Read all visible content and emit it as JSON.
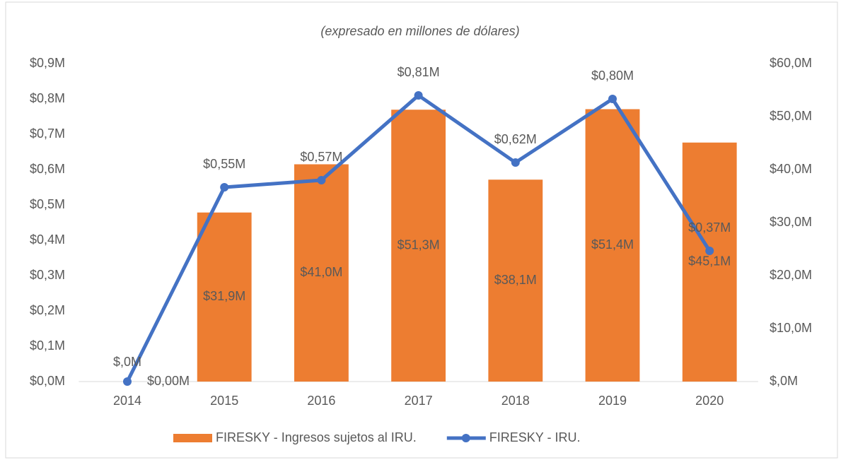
{
  "chart_data": {
    "type": "bar_line",
    "title": "(expresado en millones de dólares)",
    "categories": [
      "2014",
      "2015",
      "2016",
      "2017",
      "2018",
      "2019",
      "2020"
    ],
    "series": [
      {
        "name": "FIRESKY - Ingresos sujetos al IRU.",
        "type": "bar",
        "color": "#ed7d31",
        "axis": "y2",
        "values": [
          0,
          31.9,
          41.0,
          51.3,
          38.1,
          51.4,
          45.1
        ],
        "value_labels": [
          "$,0M",
          "$31,9M",
          "$41,0M",
          "$51,3M",
          "$38,1M",
          "$51,4M",
          "$45,1M"
        ]
      },
      {
        "name": "FIRESKY - IRU.",
        "type": "line",
        "color": "#4472c4",
        "axis": "y",
        "values": [
          0,
          0.55,
          0.57,
          0.81,
          0.62,
          0.8,
          0.37
        ],
        "value_labels": [
          "$0,00M",
          "$0,55M",
          "$0,57M",
          "$0,81M",
          "$0,62M",
          "$0,80M",
          "$0,37M"
        ]
      }
    ],
    "ylim": [
      0,
      0.9
    ],
    "yticks": [
      {
        "value": 0,
        "label": "$0,0M"
      },
      {
        "value": 0.1,
        "label": "$0,1M"
      },
      {
        "value": 0.2,
        "label": "$0,2M"
      },
      {
        "value": 0.3,
        "label": "$0,3M"
      },
      {
        "value": 0.4,
        "label": "$0,4M"
      },
      {
        "value": 0.5,
        "label": "$0,5M"
      },
      {
        "value": 0.6,
        "label": "$0,6M"
      },
      {
        "value": 0.7,
        "label": "$0,7M"
      },
      {
        "value": 0.8,
        "label": "$0,8M"
      },
      {
        "value": 0.9,
        "label": "$0,9M"
      }
    ],
    "y2lim": [
      0,
      60
    ],
    "y2ticks": [
      {
        "value": 0,
        "label": "$,0M"
      },
      {
        "value": 10,
        "label": "$10,0M"
      },
      {
        "value": 20,
        "label": "$20,0M"
      },
      {
        "value": 30,
        "label": "$30,0M"
      },
      {
        "value": 40,
        "label": "$40,0M"
      },
      {
        "value": 50,
        "label": "$50,0M"
      },
      {
        "value": 60,
        "label": "$60,0M"
      }
    ],
    "grid": false,
    "legend": "bottom"
  }
}
